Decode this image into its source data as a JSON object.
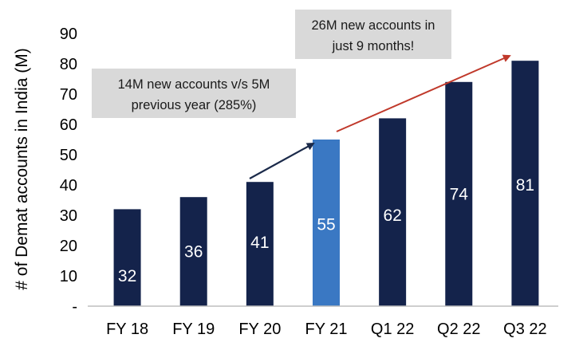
{
  "chart_data": {
    "type": "bar",
    "ylabel": "# of Demat accounts in India (M)",
    "xlabel": "",
    "title": "",
    "ylim": [
      0,
      90
    ],
    "yticks": [
      "-",
      "10",
      "20",
      "30",
      "40",
      "50",
      "60",
      "70",
      "80",
      "90"
    ],
    "categories": [
      "FY 18",
      "FY 19",
      "FY 20",
      "FY 21",
      "Q1 22",
      "Q2 22",
      "Q3 22"
    ],
    "values": [
      32,
      36,
      41,
      55,
      62,
      74,
      81
    ],
    "data_labels": [
      "32",
      "36",
      "41",
      "55",
      "62",
      "74",
      "81"
    ],
    "label_positions": [
      10,
      18,
      21,
      27,
      30,
      37,
      40
    ],
    "highlight_index": 3,
    "grid": false,
    "legend": "none",
    "annotations": [
      {
        "name": "annotation-fy21",
        "lines": [
          "14M new accounts v/s 5M",
          "previous year (285%)"
        ],
        "arrow_color": "#1b2a4a"
      },
      {
        "name": "annotation-q3",
        "lines": [
          "26M new accounts in",
          "just 9 months!"
        ],
        "arrow_color": "#c0392b"
      }
    ]
  },
  "colors": {
    "bar": "#14234b",
    "highlight": "#3a78c3",
    "axis": "#bfbfbf",
    "annotation_bg": "#d9d9d9"
  }
}
